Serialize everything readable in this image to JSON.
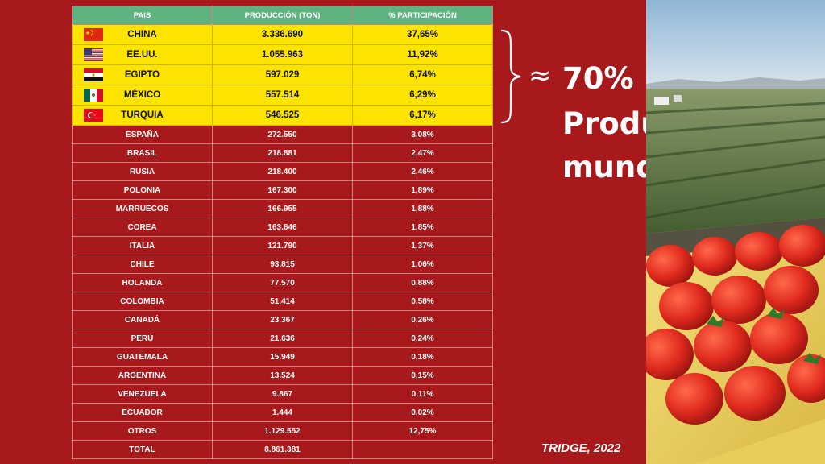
{
  "chart_data": {
    "type": "table",
    "columns": [
      "PAIS",
      "PRODUCCIÓN (TON)",
      "% PARTICIPACIÓN"
    ],
    "rows": [
      {
        "country": "CHINA",
        "production": "3.336.690",
        "share": "37,65%",
        "flag": "china-flag",
        "highlight": true
      },
      {
        "country": "EE.UU.",
        "production": "1.055.963",
        "share": "11,92%",
        "flag": "usa-flag",
        "highlight": true
      },
      {
        "country": "EGIPTO",
        "production": "597.029",
        "share": "6,74%",
        "flag": "egypt-flag",
        "highlight": true
      },
      {
        "country": "MÉXICO",
        "production": "557.514",
        "share": "6,29%",
        "flag": "mexico-flag",
        "highlight": true
      },
      {
        "country": "TURQUIA",
        "production": "546.525",
        "share": "6,17%",
        "flag": "turkey-flag",
        "highlight": true
      },
      {
        "country": "ESPAÑA",
        "production": "272.550",
        "share": "3,08%"
      },
      {
        "country": "BRASIL",
        "production": "218.881",
        "share": "2,47%"
      },
      {
        "country": "RUSIA",
        "production": "218.400",
        "share": "2,46%"
      },
      {
        "country": "POLONIA",
        "production": "167.300",
        "share": "1,89%"
      },
      {
        "country": "MARRUECOS",
        "production": "166.955",
        "share": "1,88%"
      },
      {
        "country": "COREA",
        "production": "163.646",
        "share": "1,85%"
      },
      {
        "country": "ITALIA",
        "production": "121.790",
        "share": "1,37%"
      },
      {
        "country": "CHILE",
        "production": "93.815",
        "share": "1,06%"
      },
      {
        "country": "HOLANDA",
        "production": "77.570",
        "share": "0,88%"
      },
      {
        "country": "COLOMBIA",
        "production": "51.414",
        "share": "0,58%"
      },
      {
        "country": "CANADÁ",
        "production": "23.367",
        "share": "0,26%"
      },
      {
        "country": "PERÚ",
        "production": "21.636",
        "share": "0,24%"
      },
      {
        "country": "GUATEMALA",
        "production": "15.949",
        "share": "0,18%"
      },
      {
        "country": "ARGENTINA",
        "production": "13.524",
        "share": "0,15%"
      },
      {
        "country": "VENEZUELA",
        "production": "9.867",
        "share": "0,11%"
      },
      {
        "country": "ECUADOR",
        "production": "1.444",
        "share": "0,02%"
      },
      {
        "country": "OTROS",
        "production": "1.129.552",
        "share": "12,75%"
      },
      {
        "country": "TOTAL",
        "production": "8.861.381",
        "share": ""
      }
    ]
  },
  "callout": {
    "approx_symbol": "≈",
    "percent": "70%",
    "label_line1": "Producción",
    "label_line2": "mundial"
  },
  "source": "TRIDGE, 2022",
  "colors": {
    "background": "#a8191b",
    "header": "#5fb380",
    "highlight": "#fde400"
  }
}
